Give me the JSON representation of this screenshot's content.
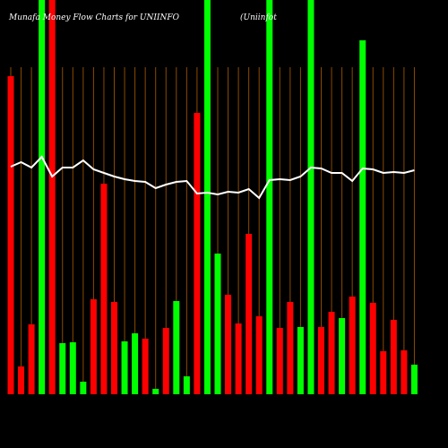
{
  "chart_data": {
    "type": "money-flow",
    "title": "Munafa Money Flow Charts for UNIINFO",
    "subtitle": "(Uniinfot",
    "categories": [
      null,
      null,
      null,
      null,
      null,
      null,
      null,
      null,
      null,
      null,
      null,
      null,
      null,
      null,
      null,
      null,
      null,
      null,
      null,
      null,
      null,
      null,
      null,
      null,
      null,
      null,
      null,
      null,
      null,
      null,
      null,
      null,
      null,
      null,
      null,
      null,
      null,
      null,
      null,
      null
    ],
    "ylim": [
      0,
      440
    ],
    "grid": true,
    "grid_color": "#8b4a00",
    "background": "#000000",
    "bars": {
      "values": [
        355,
        31,
        78,
        440,
        440,
        57,
        58,
        14,
        106,
        235,
        103,
        59,
        68,
        62,
        6,
        74,
        104,
        20,
        314,
        440,
        157,
        111,
        79,
        179,
        87,
        440,
        74,
        103,
        75,
        440,
        75,
        92,
        85,
        109,
        395,
        102,
        48,
        83,
        49,
        33
      ],
      "colors": [
        "#ff0000",
        "#ff0000",
        "#ff0000",
        "#00ff00",
        "#ff0000",
        "#00ff00",
        "#00ff00",
        "#00ff00",
        "#ff0000",
        "#ff0000",
        "#ff0000",
        "#00ff00",
        "#00ff00",
        "#ff0000",
        "#00ff00",
        "#ff0000",
        "#00ff00",
        "#00ff00",
        "#ff0000",
        "#00ff00",
        "#00ff00",
        "#ff0000",
        "#ff0000",
        "#ff0000",
        "#ff0000",
        "#00ff00",
        "#ff0000",
        "#ff0000",
        "#00ff00",
        "#00ff00",
        "#ff0000",
        "#ff0000",
        "#00ff00",
        "#ff0000",
        "#00ff00",
        "#ff0000",
        "#ff0000",
        "#ff0000",
        "#ff0000",
        "#00ff00"
      ]
    },
    "line": {
      "color": "#ffffff",
      "values": [
        254,
        259,
        253,
        265,
        243,
        253,
        253,
        261,
        251,
        247,
        243,
        240,
        238,
        237,
        230,
        234,
        237,
        238,
        224,
        225,
        223,
        226,
        225,
        229,
        219,
        239,
        240,
        239,
        243,
        253,
        252,
        247,
        247,
        238,
        252,
        251,
        247,
        248,
        247,
        250
      ]
    }
  }
}
